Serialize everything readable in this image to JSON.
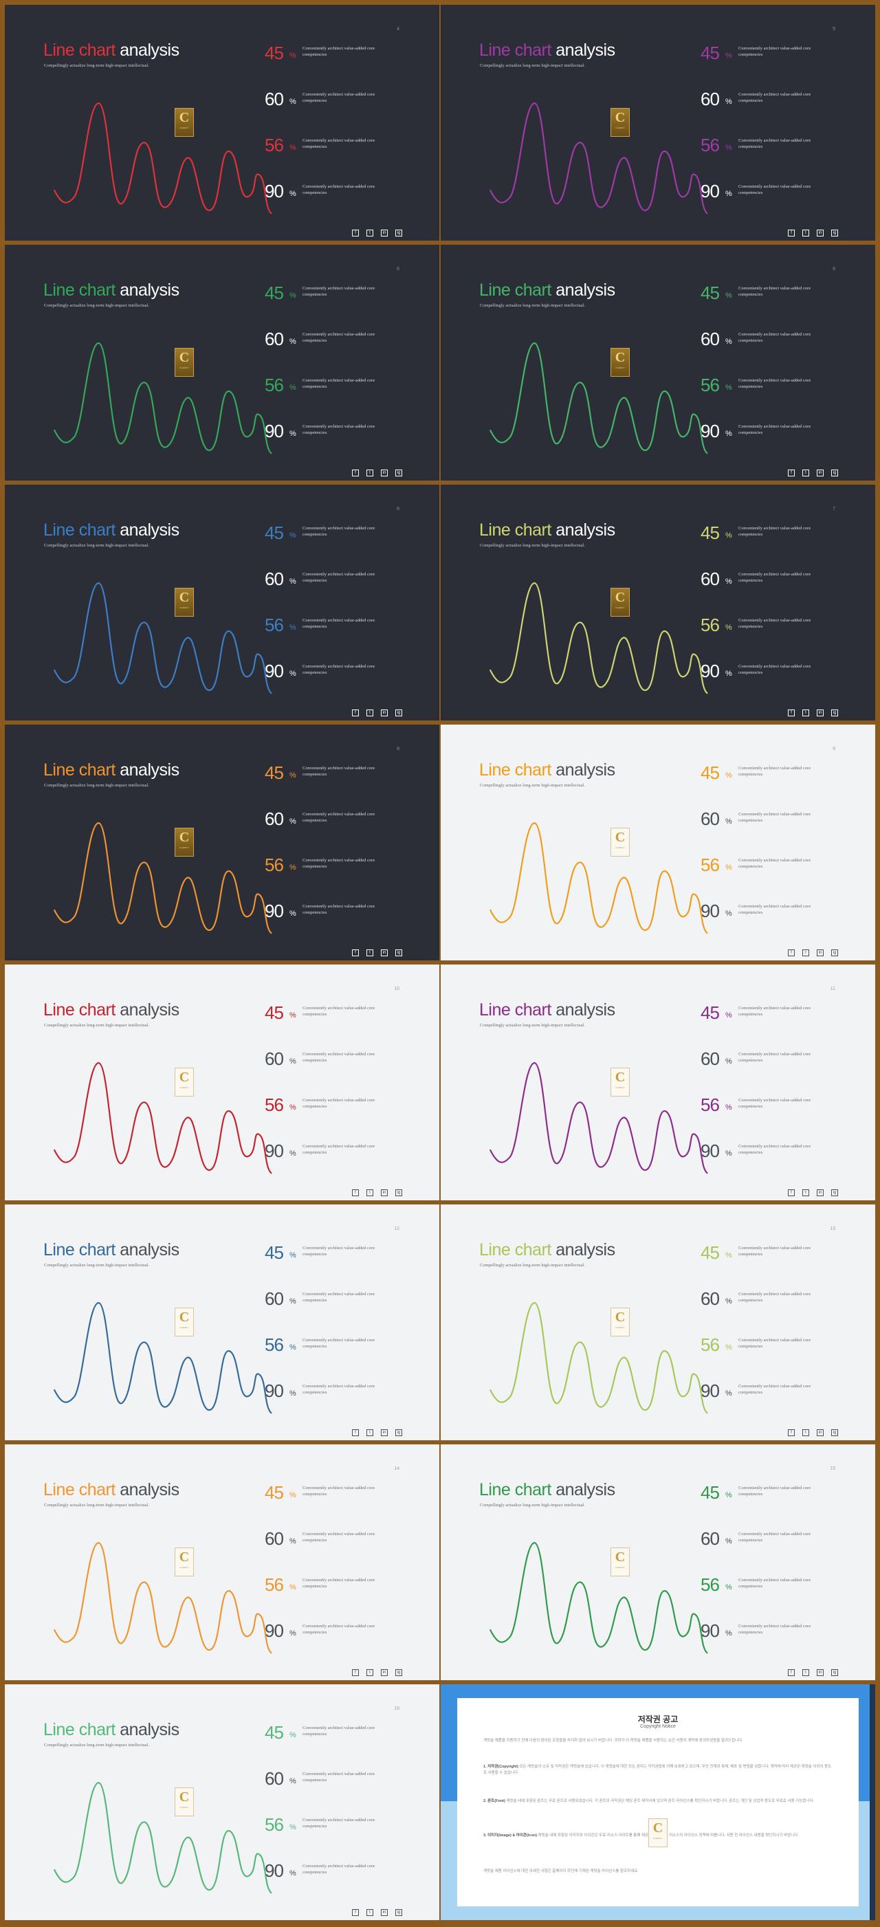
{
  "slides": [
    {
      "theme": "dark",
      "accent": "#e0323a",
      "page": "4"
    },
    {
      "theme": "dark",
      "accent": "#a03aa6",
      "page": "5"
    },
    {
      "theme": "dark",
      "accent": "#35a85a",
      "page": "6"
    },
    {
      "theme": "dark",
      "accent": "#45b56a",
      "page": "6"
    },
    {
      "theme": "dark",
      "accent": "#3d7fc4",
      "page": "6"
    },
    {
      "theme": "dark",
      "accent": "#cfd671",
      "page": "7"
    },
    {
      "theme": "dark",
      "accent": "#ef9433",
      "page": "8"
    },
    {
      "theme": "light",
      "accent": "#ef9d1a",
      "page": "9"
    },
    {
      "theme": "light",
      "accent": "#c4232d",
      "page": "10"
    },
    {
      "theme": "light",
      "accent": "#8b2b8b",
      "page": "11"
    },
    {
      "theme": "light",
      "accent": "#346a9a",
      "page": "12"
    },
    {
      "theme": "light",
      "accent": "#a8c65a",
      "page": "13"
    },
    {
      "theme": "light",
      "accent": "#ee9630",
      "page": "14"
    },
    {
      "theme": "light",
      "accent": "#2f9a4a",
      "page": "15"
    },
    {
      "theme": "light",
      "accent": "#55b87a",
      "page": "16"
    }
  ],
  "content": {
    "title_highlight": "Line chart",
    "title_rest": " analysis",
    "subtitle": "Compellingly actualize long-term high-impact intellectual.",
    "stats": [
      {
        "value": "45",
        "unit": "%",
        "desc": "Conveniently architect value-added core competencies",
        "accent": true
      },
      {
        "value": "60",
        "unit": "%",
        "desc": "Conveniently architect value-added core competencies",
        "accent": false
      },
      {
        "value": "56",
        "unit": "%",
        "desc": "Conveniently architect value-added core competencies",
        "accent": true
      },
      {
        "value": "90",
        "unit": "%",
        "desc": "Conveniently architect value-added core competencies",
        "accent": false
      }
    ],
    "badge_letter": "C",
    "badge_text": "CHERRY",
    "socials": [
      "f",
      "t",
      "in",
      "ig"
    ]
  },
  "notice": {
    "title": "저작권 공고",
    "subtitle": "Copyright Notice",
    "intro": "캐럿슬 제품을 이용하기 전에 다음의 참이된 조항들을 숙지하 않아 보시기 바랍니다. 귀하가 이 캐럿슬 제품을 사용하는 순간 사용자 계약에 동의하셨음을 알려드립니다.",
    "p1_head": "1. 저작권(Copyright)",
    "p1": " 모든 캐럿슬의 소유 및 저작권은 캐럿슬에 있습니다. 이 캐럿슬에 대한 모든 권리는 저작권법에 의해 보호받고 있으며, 무단 전재와 복제, 배포 및 변형을 금합니다. 계약에 따라 제공된 캐럿슬 이외의 용도로 사용할 수 없습니다.",
    "p2_head": "2. 폰트(Font)",
    "p2": " 캐럿슬 내에 포함된 폰트는 무료 폰트로 사용되었습니다. 각 폰트의 저작권은 해당 폰트 제작사에 있으며 폰트 라이선스를 확인하시기 바랍니다. 폰트는 개인 및 상업적 용도로 무료로 사용 가능합니다.",
    "p3_head": "3. 이미지(Image) & 아이콘(Icon)",
    "p3": " 캐럿슬 내에 포함된 이미지와 아이콘은 무료 리소스 사이트를 통해 제공된 것으로 각 리소스의 라이선스 정책에 따릅니다. 사용 전 라이선스 내용을 확인하시기 바랍니다.",
    "outro": "캐럿슬 제품 라이선스에 대한 자세한 사항은 홈페이지 하단에 기재된 캐럿슬 라이선스를 참조하세요."
  }
}
